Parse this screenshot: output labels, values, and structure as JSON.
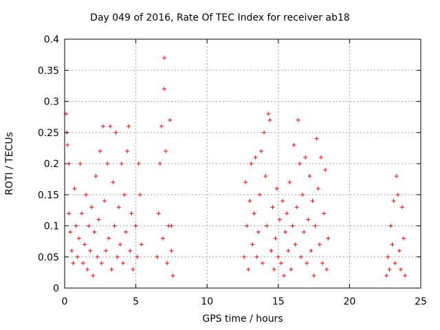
{
  "chart_data": {
    "type": "scatter",
    "title": "Day 049 of 2016, Rate Of TEC Index for receiver ab18",
    "xlabel": "GPS time / hours",
    "ylabel": "ROTI / TECUs",
    "xlim": [
      0,
      25
    ],
    "ylim": [
      0,
      0.4
    ],
    "x_ticks": [
      0,
      5,
      10,
      15,
      20,
      25
    ],
    "y_ticks": [
      0,
      0.05,
      0.1,
      0.15,
      0.2,
      0.25,
      0.3,
      0.35,
      0.4
    ],
    "x_tick_labels": [
      "0",
      "5",
      "10",
      "15",
      "20",
      "25"
    ],
    "y_tick_labels": [
      "0",
      "0.05",
      "0.1",
      "0.15",
      "0.2",
      "0.25",
      "0.3",
      "0.35",
      "0.4"
    ],
    "grid": true,
    "marker": "+",
    "color": "#ff0000",
    "series": [
      {
        "points": [
          [
            0.1,
            0.28
          ],
          [
            0.15,
            0.25
          ],
          [
            0.2,
            0.23
          ],
          [
            0.3,
            0.2
          ],
          [
            0.3,
            0.12
          ],
          [
            0.4,
            0.09
          ],
          [
            0.5,
            0.06
          ],
          [
            0.6,
            0.04
          ],
          [
            0.7,
            0.16
          ],
          [
            0.8,
            0.1
          ],
          [
            0.9,
            0.05
          ],
          [
            1.0,
            0.08
          ],
          [
            1.1,
            0.2
          ],
          [
            1.2,
            0.12
          ],
          [
            1.3,
            0.04
          ],
          [
            1.4,
            0.07
          ],
          [
            1.5,
            0.15
          ],
          [
            1.6,
            0.03
          ],
          [
            1.7,
            0.1
          ],
          [
            1.8,
            0.06
          ],
          [
            1.9,
            0.13
          ],
          [
            2.0,
            0.02
          ],
          [
            2.1,
            0.09
          ],
          [
            2.2,
            0.18
          ],
          [
            2.3,
            0.05
          ],
          [
            2.4,
            0.11
          ],
          [
            2.5,
            0.22
          ],
          [
            2.6,
            0.04
          ],
          [
            2.7,
            0.26
          ],
          [
            2.8,
            0.14
          ],
          [
            2.9,
            0.06
          ],
          [
            3.0,
            0.2
          ],
          [
            3.1,
            0.08
          ],
          [
            3.2,
            0.26
          ],
          [
            3.3,
            0.03
          ],
          [
            3.4,
            0.17
          ],
          [
            3.5,
            0.1
          ],
          [
            3.6,
            0.25
          ],
          [
            3.7,
            0.05
          ],
          [
            3.8,
            0.13
          ],
          [
            3.9,
            0.07
          ],
          [
            4.0,
            0.2
          ],
          [
            4.1,
            0.04
          ],
          [
            4.2,
            0.15
          ],
          [
            4.3,
            0.09
          ],
          [
            4.4,
            0.22
          ],
          [
            4.5,
            0.26
          ],
          [
            4.6,
            0.06
          ],
          [
            4.7,
            0.12
          ],
          [
            4.8,
            0.03
          ],
          [
            5.0,
            0.1
          ],
          [
            5.1,
            0.05
          ],
          [
            5.2,
            0.2
          ],
          [
            5.3,
            0.15
          ],
          [
            5.4,
            0.07
          ],
          [
            6.5,
            0.05
          ],
          [
            6.6,
            0.12
          ],
          [
            6.7,
            0.2
          ],
          [
            6.8,
            0.26
          ],
          [
            6.9,
            0.08
          ],
          [
            7.0,
            0.37
          ],
          [
            7.0,
            0.32
          ],
          [
            7.1,
            0.22
          ],
          [
            7.2,
            0.04
          ],
          [
            7.3,
            0.1
          ],
          [
            7.4,
            0.27
          ],
          [
            7.5,
            0.06
          ],
          [
            7.5,
            0.1
          ],
          [
            7.6,
            0.02
          ],
          [
            12.6,
            0.05
          ],
          [
            12.7,
            0.17
          ],
          [
            12.8,
            0.1
          ],
          [
            12.9,
            0.03
          ],
          [
            13.0,
            0.14
          ],
          [
            13.1,
            0.2
          ],
          [
            13.2,
            0.07
          ],
          [
            13.3,
            0.12
          ],
          [
            13.4,
            0.21
          ],
          [
            13.5,
            0.05
          ],
          [
            13.6,
            0.09
          ],
          [
            13.7,
            0.15
          ],
          [
            13.8,
            0.22
          ],
          [
            13.9,
            0.04
          ],
          [
            14.0,
            0.25
          ],
          [
            14.1,
            0.18
          ],
          [
            14.2,
            0.1
          ],
          [
            14.3,
            0.28
          ],
          [
            14.4,
            0.27
          ],
          [
            14.5,
            0.06
          ],
          [
            14.6,
            0.13
          ],
          [
            14.7,
            0.03
          ],
          [
            14.8,
            0.08
          ],
          [
            14.9,
            0.16
          ],
          [
            15.0,
            0.05
          ],
          [
            15.1,
            0.11
          ],
          [
            15.2,
            0.04
          ],
          [
            15.3,
            0.14
          ],
          [
            15.4,
            0.02
          ],
          [
            15.5,
            0.09
          ],
          [
            15.6,
            0.12
          ],
          [
            15.7,
            0.06
          ],
          [
            15.8,
            0.17
          ],
          [
            15.9,
            0.03
          ],
          [
            16.0,
            0.1
          ],
          [
            16.1,
            0.23
          ],
          [
            16.2,
            0.07
          ],
          [
            16.3,
            0.13
          ],
          [
            16.4,
            0.27
          ],
          [
            16.5,
            0.2
          ],
          [
            16.6,
            0.05
          ],
          [
            16.7,
            0.15
          ],
          [
            16.8,
            0.09
          ],
          [
            16.9,
            0.21
          ],
          [
            17.0,
            0.04
          ],
          [
            17.1,
            0.11
          ],
          [
            17.2,
            0.18
          ],
          [
            17.3,
            0.06
          ],
          [
            17.4,
            0.14
          ],
          [
            17.5,
            0.02
          ],
          [
            17.6,
            0.1
          ],
          [
            17.7,
            0.24
          ],
          [
            17.8,
            0.16
          ],
          [
            17.9,
            0.07
          ],
          [
            18.0,
            0.21
          ],
          [
            18.1,
            0.04
          ],
          [
            18.2,
            0.12
          ],
          [
            18.3,
            0.19
          ],
          [
            18.4,
            0.03
          ],
          [
            18.5,
            0.08
          ],
          [
            22.6,
            0.02
          ],
          [
            22.7,
            0.05
          ],
          [
            22.8,
            0.03
          ],
          [
            22.9,
            0.1
          ],
          [
            23.0,
            0.07
          ],
          [
            23.1,
            0.14
          ],
          [
            23.2,
            0.04
          ],
          [
            23.3,
            0.18
          ],
          [
            23.4,
            0.15
          ],
          [
            23.5,
            0.06
          ],
          [
            23.6,
            0.03
          ],
          [
            23.7,
            0.13
          ],
          [
            23.8,
            0.08
          ],
          [
            23.9,
            0.02
          ]
        ]
      }
    ]
  }
}
